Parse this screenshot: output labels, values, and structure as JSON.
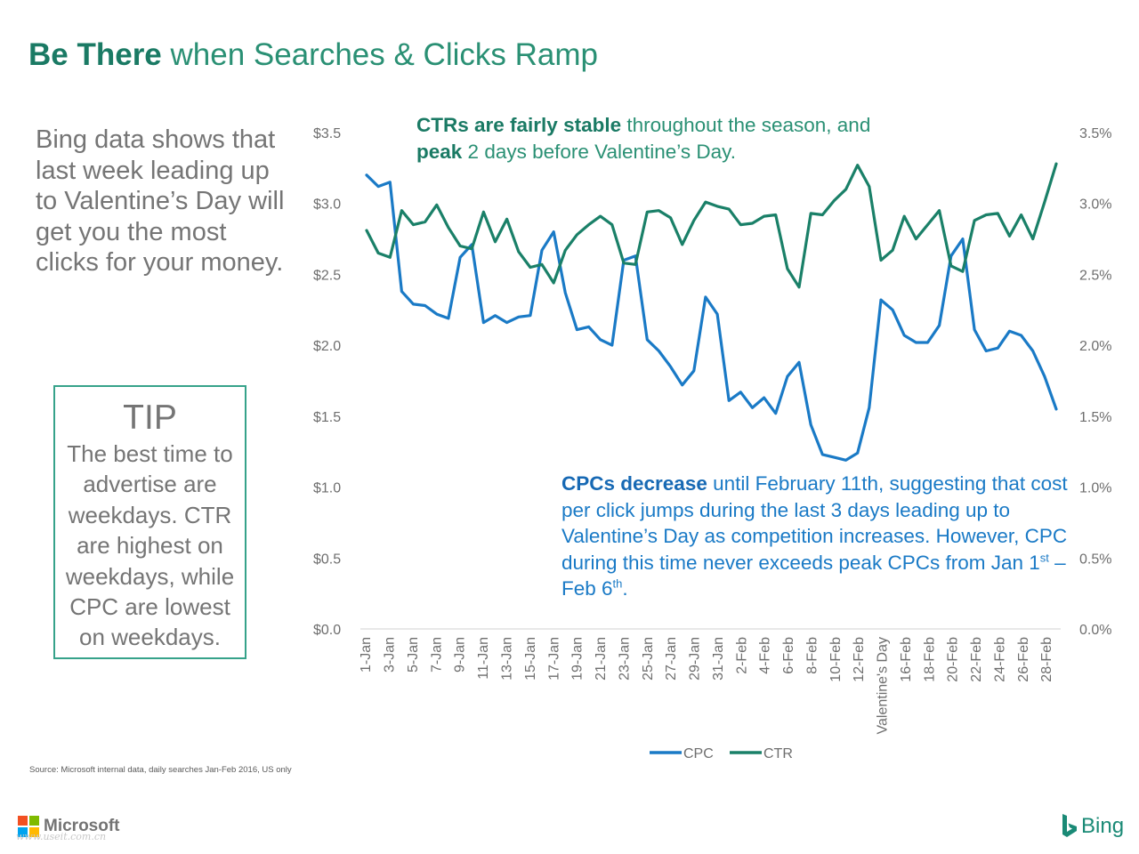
{
  "header": {
    "title_bold": "Be There",
    "title_rest": " when Searches & Clicks Ramp"
  },
  "intro": {
    "text": "Bing data shows that last week leading up to Valentine’s Day will get you the most clicks for your money."
  },
  "tip": {
    "heading": "TIP",
    "body": "The best time to advertise are weekdays. CTR are highest on weekdays, while CPC are lowest on weekdays."
  },
  "annotations": {
    "ctr_bold": "CTRs are fairly stable",
    "ctr_text1": " throughout the season, and ",
    "ctr_bold2": "peak",
    "ctr_text2": " 2 days before Valentine’s Day.",
    "cpc_bold": "CPCs decrease",
    "cpc_text1": " until February 11th, suggesting that cost per click jumps during the last 3 days leading up to Valentine’s Day as competition increases. However, CPC during this time never exceeds peak CPCs from Jan 1",
    "cpc_sup1": "st",
    "cpc_text2": " – Feb 6",
    "cpc_sup2": "th",
    "cpc_text3": "."
  },
  "source": "Source: Microsoft internal data, daily searches Jan-Feb 2016, US only",
  "logos": {
    "microsoft": "Microsoft",
    "bing": "Bing",
    "watermark": "www.useit.com.cn"
  },
  "colors": {
    "cpc": "#1a7ac6",
    "ctr": "#1a8068",
    "title": "#1a7a64"
  },
  "chart_data": {
    "type": "line",
    "x_labels": [
      "1-Jan",
      "3-Jan",
      "5-Jan",
      "7-Jan",
      "9-Jan",
      "11-Jan",
      "13-Jan",
      "15-Jan",
      "17-Jan",
      "19-Jan",
      "21-Jan",
      "23-Jan",
      "25-Jan",
      "27-Jan",
      "29-Jan",
      "31-Jan",
      "2-Feb",
      "4-Feb",
      "6-Feb",
      "8-Feb",
      "10-Feb",
      "12-Feb",
      "Valentine's Day",
      "16-Feb",
      "18-Feb",
      "20-Feb",
      "22-Feb",
      "24-Feb",
      "26-Feb",
      "28-Feb"
    ],
    "left_axis": {
      "ticks": [
        "$0.0",
        "$0.5",
        "$1.0",
        "$1.5",
        "$2.0",
        "$2.5",
        "$3.0",
        "$3.5"
      ],
      "min": 0,
      "max": 3.5
    },
    "right_axis": {
      "ticks": [
        "0.0%",
        "0.5%",
        "1.0%",
        "1.5%",
        "2.0%",
        "2.5%",
        "3.0%",
        "3.5%"
      ],
      "min": 0,
      "max": 3.5
    },
    "legend": [
      "CPC",
      "CTR"
    ],
    "legend_position": "bottom",
    "grid": false,
    "series": [
      {
        "name": "CPC",
        "axis": "left",
        "values": [
          3.2,
          3.12,
          3.15,
          2.38,
          2.29,
          2.28,
          2.22,
          2.19,
          2.62,
          2.71,
          2.16,
          2.21,
          2.16,
          2.2,
          2.21,
          2.67,
          2.8,
          2.37,
          2.11,
          2.13,
          2.04,
          2.0,
          2.6,
          2.63,
          2.04,
          1.96,
          1.85,
          1.72,
          1.82,
          2.34,
          2.22,
          1.61,
          1.67,
          1.56,
          1.63,
          1.52,
          1.78,
          1.88,
          1.44,
          1.23,
          1.21,
          1.19,
          1.24,
          1.56,
          2.32,
          2.25,
          2.07,
          2.02,
          2.02,
          2.14,
          2.63,
          2.75,
          2.11,
          1.96,
          1.98,
          2.1,
          2.07,
          1.96,
          1.78,
          1.55
        ]
      },
      {
        "name": "CTR",
        "axis": "right",
        "values": [
          2.81,
          2.65,
          2.62,
          2.95,
          2.85,
          2.87,
          2.99,
          2.83,
          2.7,
          2.68,
          2.94,
          2.73,
          2.89,
          2.66,
          2.55,
          2.57,
          2.44,
          2.67,
          2.78,
          2.85,
          2.91,
          2.85,
          2.58,
          2.57,
          2.94,
          2.95,
          2.9,
          2.71,
          2.88,
          3.01,
          2.98,
          2.96,
          2.85,
          2.86,
          2.91,
          2.92,
          2.54,
          2.41,
          2.93,
          2.92,
          3.02,
          3.1,
          3.27,
          3.12,
          2.6,
          2.67,
          2.91,
          2.75,
          2.85,
          2.95,
          2.56,
          2.52,
          2.88,
          2.92,
          2.93,
          2.77,
          2.92,
          2.75,
          3.01,
          3.28
        ]
      }
    ]
  }
}
